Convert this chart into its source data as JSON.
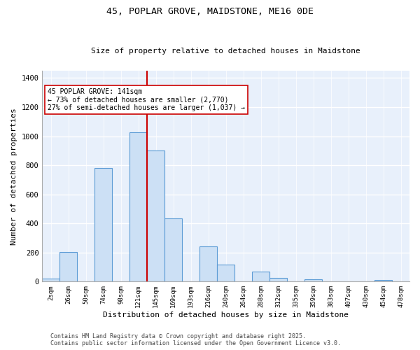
{
  "title1": "45, POPLAR GROVE, MAIDSTONE, ME16 0DE",
  "title2": "Size of property relative to detached houses in Maidstone",
  "xlabel": "Distribution of detached houses by size in Maidstone",
  "ylabel": "Number of detached properties",
  "categories": [
    "2sqm",
    "26sqm",
    "50sqm",
    "74sqm",
    "98sqm",
    "121sqm",
    "145sqm",
    "169sqm",
    "193sqm",
    "216sqm",
    "240sqm",
    "264sqm",
    "288sqm",
    "312sqm",
    "335sqm",
    "359sqm",
    "383sqm",
    "407sqm",
    "430sqm",
    "454sqm",
    "478sqm"
  ],
  "values": [
    20,
    205,
    0,
    780,
    0,
    1025,
    900,
    435,
    0,
    240,
    115,
    0,
    70,
    28,
    0,
    15,
    0,
    3,
    0,
    10,
    0
  ],
  "bar_color_fill": "#cce0f5",
  "bar_color_edge": "#5b9bd5",
  "vline_x_index": 6,
  "vline_color": "#cc0000",
  "annotation_text": "45 POPLAR GROVE: 141sqm\n← 73% of detached houses are smaller (2,770)\n27% of semi-detached houses are larger (1,037) →",
  "annotation_box_color": "white",
  "annotation_box_edge": "#cc0000",
  "ylim": [
    0,
    1450
  ],
  "yticks": [
    0,
    200,
    400,
    600,
    800,
    1000,
    1200,
    1400
  ],
  "background_color": "#e8f0fb",
  "grid_color": "white",
  "footer1": "Contains HM Land Registry data © Crown copyright and database right 2025.",
  "footer2": "Contains public sector information licensed under the Open Government Licence v3.0."
}
